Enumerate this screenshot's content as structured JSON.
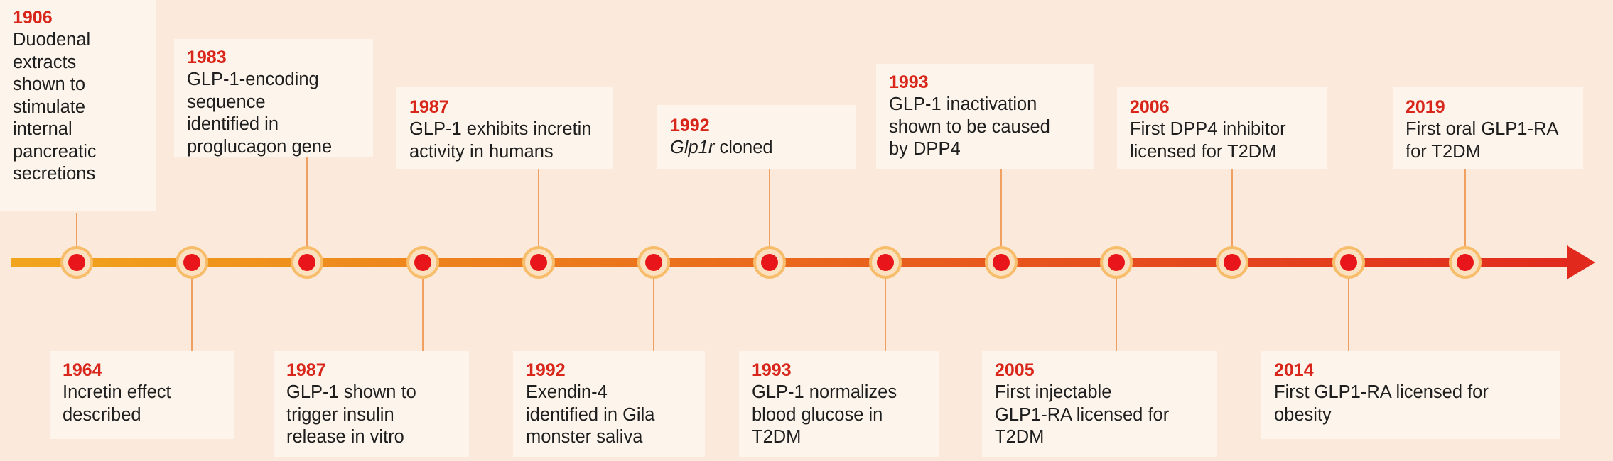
{
  "colors": {
    "background": "#fbeadb",
    "card": "#fdf5ec",
    "year": "#d8261b",
    "text": "#1e1e1e",
    "line_start": "#f2a51c",
    "line_end": "#e12a1d",
    "marker_fill": "#e8161a",
    "marker_ring": "#fbe1c0",
    "connector": "#f0a060"
  },
  "events": [
    {
      "year": "1906",
      "desc_lines": [
        "Duodenal",
        "extracts",
        "shown to",
        "stimulate",
        "internal",
        "pancreatic",
        "secretions"
      ]
    },
    {
      "year": "1964",
      "desc_lines": [
        "Incretin effect",
        "described"
      ]
    },
    {
      "year": "1983",
      "desc_lines": [
        "GLP-1-encoding",
        "sequence",
        "identified in",
        "proglucagon gene"
      ]
    },
    {
      "year": "1987",
      "desc_lines": [
        "GLP-1 shown to",
        "trigger insulin",
        "release in vitro"
      ]
    },
    {
      "year": "1987",
      "desc_lines": [
        "GLP-1 exhibits incretin",
        "activity in humans"
      ]
    },
    {
      "year": "1992",
      "desc_lines": [
        "Exendin-4",
        "identified in Gila",
        "monster saliva"
      ]
    },
    {
      "year": "1992",
      "desc_italic": "Glp1r",
      "desc_rest": " cloned"
    },
    {
      "year": "1993",
      "desc_lines": [
        "GLP-1 normalizes",
        "blood glucose in",
        "T2DM"
      ]
    },
    {
      "year": "1993",
      "desc_lines": [
        "GLP-1 inactivation",
        "shown to be caused",
        "by DPP4"
      ]
    },
    {
      "year": "2005",
      "desc_lines": [
        "First injectable",
        "GLP1-RA licensed for",
        "T2DM"
      ]
    },
    {
      "year": "2006",
      "desc_lines": [
        "First DPP4 inhibitor",
        "licensed for T2DM"
      ]
    },
    {
      "year": "2014",
      "desc_lines": [
        "First GLP1-RA licensed for",
        "obesity"
      ]
    },
    {
      "year": "2019",
      "desc_lines": [
        "First oral GLP1-RA",
        "for T2DM"
      ]
    }
  ]
}
